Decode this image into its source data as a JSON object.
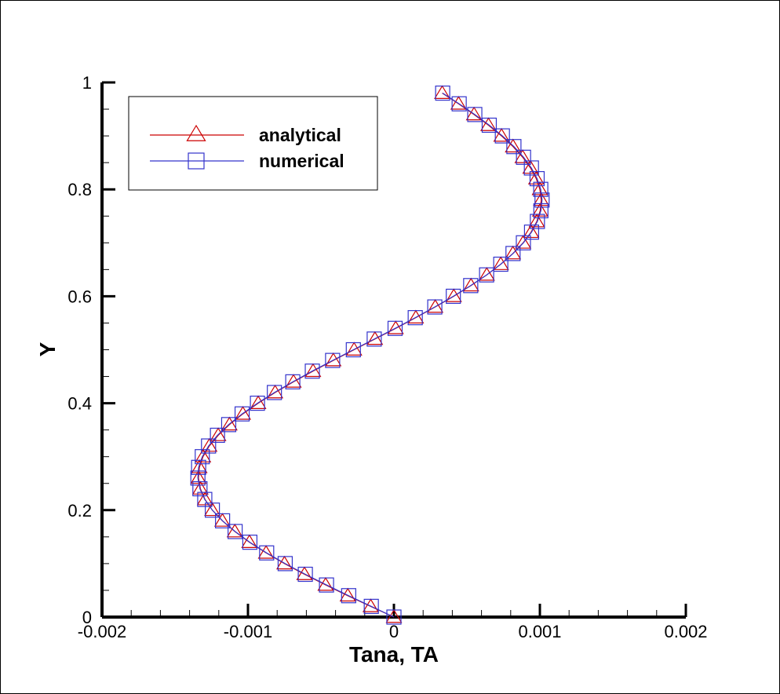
{
  "chart_data": {
    "type": "line",
    "title": "",
    "xlabel": "Tana, TA",
    "ylabel": "Y",
    "xlim": [
      -0.002,
      0.002
    ],
    "ylim": [
      0,
      1
    ],
    "x_ticks": [
      -0.002,
      -0.001,
      0,
      0.001,
      0.002
    ],
    "x_tick_labels": [
      "-0.002",
      "-0.001",
      "0",
      "0.001",
      "0.002"
    ],
    "y_ticks": [
      0,
      0.2,
      0.4,
      0.6,
      0.8,
      1
    ],
    "y_tick_labels": [
      "0",
      "0.2",
      "0.4",
      "0.6",
      "0.8",
      "1"
    ],
    "grid": false,
    "legend_position": "top-left",
    "series": [
      {
        "name": "analytical",
        "color": "#cc0000",
        "marker": "triangle",
        "y": [
          0,
          0.02,
          0.04,
          0.06,
          0.08,
          0.1,
          0.12,
          0.14,
          0.16,
          0.18,
          0.2,
          0.22,
          0.24,
          0.26,
          0.28,
          0.3,
          0.32,
          0.34,
          0.36,
          0.38,
          0.4,
          0.42,
          0.44,
          0.46,
          0.48,
          0.5,
          0.52,
          0.54,
          0.56,
          0.58,
          0.6,
          0.62,
          0.64,
          0.66,
          0.68,
          0.7,
          0.72,
          0.74,
          0.76,
          0.78,
          0.8,
          0.82,
          0.84,
          0.86,
          0.88,
          0.9,
          0.92,
          0.94,
          0.96,
          0.98
        ],
        "x": [
          0,
          -0.000159,
          -0.000316,
          -0.000468,
          -0.000613,
          -0.00075,
          -0.000876,
          -0.00099,
          -0.00109,
          -0.001175,
          -0.001244,
          -0.001294,
          -0.001326,
          -0.001339,
          -0.001333,
          -0.001308,
          -0.001265,
          -0.001204,
          -0.001127,
          -0.001035,
          -0.00093,
          -0.000814,
          -0.000688,
          -0.000554,
          -0.000415,
          -0.000273,
          -0.00013,
          1.2e-05,
          0.00015,
          0.000283,
          0.00041,
          0.000528,
          0.000636,
          0.000732,
          0.000815,
          0.000885,
          0.00094,
          0.000979,
          0.001002,
          0.001009,
          0.001,
          0.000975,
          0.000936,
          0.000882,
          0.000816,
          0.000737,
          0.000648,
          0.000549,
          0.000443,
          0.000331
        ]
      },
      {
        "name": "numerical",
        "color": "#3333cc",
        "marker": "square",
        "y": [
          0,
          0.02,
          0.04,
          0.06,
          0.08,
          0.1,
          0.12,
          0.14,
          0.16,
          0.18,
          0.2,
          0.22,
          0.24,
          0.26,
          0.28,
          0.3,
          0.32,
          0.34,
          0.36,
          0.38,
          0.4,
          0.42,
          0.44,
          0.46,
          0.48,
          0.5,
          0.52,
          0.54,
          0.56,
          0.58,
          0.6,
          0.62,
          0.64,
          0.66,
          0.68,
          0.7,
          0.72,
          0.74,
          0.76,
          0.78,
          0.8,
          0.82,
          0.84,
          0.86,
          0.88,
          0.9,
          0.92,
          0.94,
          0.96,
          0.98
        ],
        "x": [
          0,
          -0.000155,
          -0.00031,
          -0.000462,
          -0.000607,
          -0.000745,
          -0.000872,
          -0.000987,
          -0.001088,
          -0.001174,
          -0.001244,
          -0.001296,
          -0.001329,
          -0.001343,
          -0.001338,
          -0.001313,
          -0.00127,
          -0.001209,
          -0.001132,
          -0.00104,
          -0.000935,
          -0.000819,
          -0.000693,
          -0.000559,
          -0.00042,
          -0.000278,
          -0.000135,
          8e-06,
          0.000146,
          0.00028,
          0.000407,
          0.000526,
          0.000635,
          0.000732,
          0.000816,
          0.000887,
          0.000943,
          0.000983,
          0.001007,
          0.001015,
          0.001006,
          0.000981,
          0.000942,
          0.000888,
          0.000822,
          0.000743,
          0.000653,
          0.000554,
          0.000447,
          0.000334
        ]
      }
    ]
  }
}
